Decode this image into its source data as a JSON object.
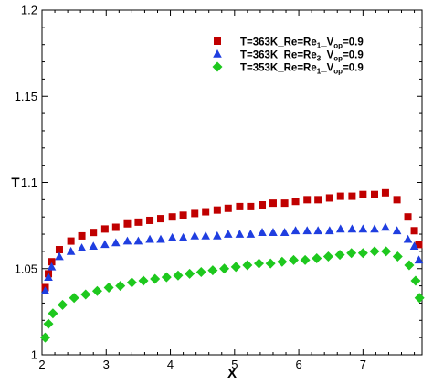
{
  "chart_data": {
    "type": "scatter",
    "title": "",
    "xlabel": "X",
    "ylabel": "T",
    "xlim": [
      2,
      7.92
    ],
    "ylim": [
      1,
      1.2
    ],
    "xticks": [
      2,
      3,
      4,
      5,
      6,
      7
    ],
    "yticks": [
      1,
      1.05,
      1.1,
      1.15,
      1.2
    ],
    "xtick_labels": [
      "2",
      "3",
      "4",
      "5",
      "6",
      "7"
    ],
    "ytick_labels": [
      "1",
      "1.05",
      "1.1",
      "1.15",
      "1.2"
    ],
    "grid": false,
    "legend_position": "top-right",
    "series": [
      {
        "name": "T=363K_Re=Re1_Vop=0.9",
        "legend": {
          "a": "T=363K_Re=Re",
          "sub1": "1",
          "b": "_V",
          "sub2": "op",
          "c": "=0.9"
        },
        "marker": "square",
        "color": "#c00000",
        "x": [
          2.05,
          2.1,
          2.15,
          2.27,
          2.45,
          2.62,
          2.8,
          2.98,
          3.15,
          3.33,
          3.5,
          3.68,
          3.85,
          4.03,
          4.2,
          4.38,
          4.55,
          4.73,
          4.9,
          5.08,
          5.25,
          5.43,
          5.6,
          5.78,
          5.95,
          6.13,
          6.3,
          6.48,
          6.65,
          6.83,
          7.0,
          7.18,
          7.35,
          7.53,
          7.7,
          7.8,
          7.87
        ],
        "y": [
          1.039,
          1.047,
          1.054,
          1.061,
          1.066,
          1.069,
          1.071,
          1.073,
          1.074,
          1.076,
          1.077,
          1.078,
          1.079,
          1.08,
          1.081,
          1.082,
          1.083,
          1.084,
          1.085,
          1.086,
          1.086,
          1.087,
          1.088,
          1.088,
          1.089,
          1.09,
          1.09,
          1.091,
          1.092,
          1.092,
          1.093,
          1.093,
          1.094,
          1.09,
          1.08,
          1.072,
          1.064
        ]
      },
      {
        "name": "T=363K_Re=Re3_Vop=0.9",
        "legend": {
          "a": "T=363K_Re=Re",
          "sub1": "3",
          "b": "_V",
          "sub2": "op",
          "c": "=0.9"
        },
        "marker": "triangle",
        "color": "#1f3ee0",
        "x": [
          2.05,
          2.1,
          2.15,
          2.27,
          2.45,
          2.62,
          2.8,
          2.98,
          3.15,
          3.33,
          3.5,
          3.68,
          3.85,
          4.03,
          4.2,
          4.38,
          4.55,
          4.73,
          4.9,
          5.08,
          5.25,
          5.43,
          5.6,
          5.78,
          5.95,
          6.13,
          6.3,
          6.48,
          6.65,
          6.83,
          7.0,
          7.18,
          7.35,
          7.53,
          7.7,
          7.8,
          7.87
        ],
        "y": [
          1.037,
          1.045,
          1.051,
          1.057,
          1.06,
          1.062,
          1.063,
          1.064,
          1.065,
          1.066,
          1.066,
          1.067,
          1.067,
          1.068,
          1.068,
          1.069,
          1.069,
          1.069,
          1.07,
          1.07,
          1.07,
          1.071,
          1.071,
          1.071,
          1.072,
          1.072,
          1.072,
          1.072,
          1.073,
          1.073,
          1.073,
          1.073,
          1.074,
          1.072,
          1.067,
          1.063,
          1.055
        ]
      },
      {
        "name": "T=353K_Re=Re1_Vop=0.9",
        "legend": {
          "a": "T=353K_Re=Re",
          "sub1": "1",
          "b": "_V",
          "sub2": "op",
          "c": "=0.9"
        },
        "marker": "diamond",
        "color": "#1ec81e",
        "x": [
          2.05,
          2.1,
          2.17,
          2.32,
          2.5,
          2.68,
          2.86,
          3.04,
          3.22,
          3.4,
          3.58,
          3.76,
          3.94,
          4.12,
          4.3,
          4.48,
          4.66,
          4.84,
          5.02,
          5.2,
          5.38,
          5.56,
          5.74,
          5.92,
          6.1,
          6.28,
          6.46,
          6.64,
          6.82,
          7.0,
          7.18,
          7.36,
          7.54,
          7.72,
          7.82,
          7.88
        ],
        "y": [
          1.01,
          1.018,
          1.024,
          1.029,
          1.033,
          1.035,
          1.037,
          1.039,
          1.04,
          1.042,
          1.043,
          1.044,
          1.045,
          1.046,
          1.047,
          1.048,
          1.049,
          1.05,
          1.051,
          1.052,
          1.053,
          1.053,
          1.054,
          1.055,
          1.055,
          1.056,
          1.057,
          1.058,
          1.059,
          1.059,
          1.06,
          1.06,
          1.057,
          1.052,
          1.043,
          1.033
        ]
      }
    ]
  }
}
